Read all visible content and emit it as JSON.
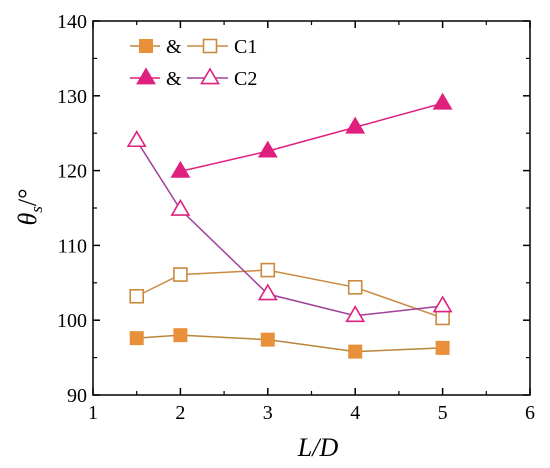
{
  "chart_data": {
    "type": "line",
    "xlabel": "L/D",
    "ylabel_symbol": "θ",
    "ylabel_subscript": "s",
    "ylabel_unit": "/°",
    "xlim": [
      1,
      6
    ],
    "ylim": [
      90,
      140
    ],
    "xticks": [
      "1",
      "2",
      "3",
      "4",
      "5",
      "6"
    ],
    "yticks": [
      "90",
      "100",
      "110",
      "120",
      "130",
      "140"
    ],
    "grid": false,
    "legend_position": "top-left",
    "series": [
      {
        "group": "C1",
        "marker": "square",
        "filled": true,
        "color": "#e8913a",
        "line_color": "#b8863a",
        "x": [
          1.5,
          2,
          3,
          4,
          5
        ],
        "values": [
          97.6,
          98.0,
          97.4,
          95.8,
          96.3
        ]
      },
      {
        "group": "C1",
        "marker": "square",
        "filled": false,
        "color": "#c98a3e",
        "line_color": "#c98a3e",
        "x": [
          1.5,
          2,
          3,
          4,
          5
        ],
        "values": [
          103.2,
          106.1,
          106.7,
          104.4,
          100.3
        ]
      },
      {
        "group": "C2",
        "marker": "triangle",
        "filled": true,
        "color": "#e0207f",
        "line_color": "#e0207f",
        "x": [
          2,
          3,
          4,
          5
        ],
        "values": [
          119.9,
          122.6,
          125.8,
          129.0
        ]
      },
      {
        "group": "C2",
        "marker": "triangle",
        "filled": false,
        "color": "#e0207f",
        "line_color": "#a0409a",
        "x": [
          1.5,
          2,
          3,
          4,
          5
        ],
        "values": [
          124.0,
          114.8,
          103.5,
          100.6,
          101.9
        ]
      }
    ],
    "legend": [
      {
        "filled_series": 0,
        "open_series": 1,
        "joiner": "&",
        "label": "C1"
      },
      {
        "filled_series": 2,
        "open_series": 3,
        "joiner": "&",
        "label": "C2"
      }
    ]
  }
}
